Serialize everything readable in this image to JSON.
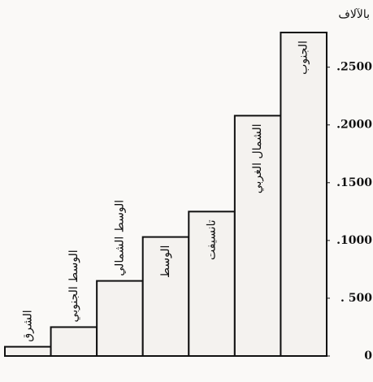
{
  "chart_data": {
    "type": "bar",
    "unit_label": "بالآلاف",
    "categories": [
      "الشرق",
      "الوسط الجنوبي",
      "الوسط الشمالي",
      "الوسط",
      "تانسيفت",
      "الشمال الغربي",
      "الجنوب"
    ],
    "values": [
      80,
      250,
      650,
      1030,
      1250,
      2080,
      2800
    ],
    "color": "#f4f2ef",
    "ylim": [
      0,
      2800
    ],
    "yticks": [
      0,
      {
        "value": 500,
        "label": ". 500"
      },
      {
        "value": 1000,
        "label": ".1000"
      },
      {
        "value": 1500,
        "label": ".1500"
      },
      {
        "value": 2000,
        "label": ".2000"
      },
      {
        "value": 2500,
        "label": ".2500"
      }
    ],
    "grid": false
  }
}
